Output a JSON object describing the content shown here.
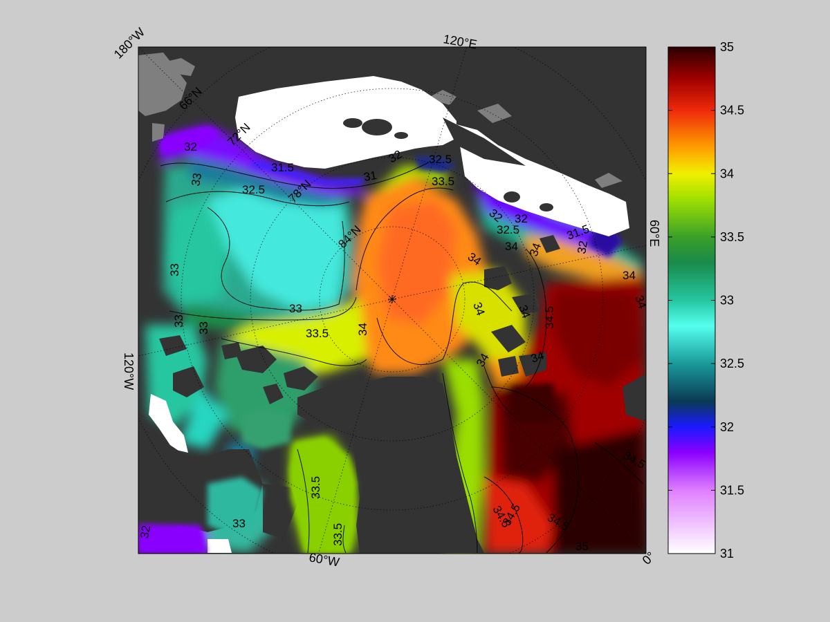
{
  "map": {
    "longitude_labels": [
      "180°W",
      "120°E",
      "60°E",
      "0°",
      "60°W",
      "120°W"
    ],
    "latitude_labels": [
      "66°N",
      "72°N",
      "78°N",
      "84°N"
    ],
    "contour_labels": [
      "31",
      "31.5",
      "32",
      "32.5",
      "33",
      "33.5",
      "34",
      "34.5",
      "35"
    ],
    "colors": {
      "land": "#333333",
      "ice": "#ffffff",
      "missing": "#7f7f7f",
      "figure_background": "#cccccc"
    }
  },
  "colorbar": {
    "min": 31,
    "max": 35,
    "tick_labels": [
      "35",
      "34.5",
      "34",
      "33.5",
      "33",
      "32.5",
      "32",
      "31.5",
      "31"
    ],
    "gradient": [
      {
        "value": 31.0,
        "color": "#ffffff"
      },
      {
        "value": 31.5,
        "color": "#df7fff"
      },
      {
        "value": 31.8,
        "color": "#8a00ff"
      },
      {
        "value": 32.0,
        "color": "#1a1aff"
      },
      {
        "value": 32.2,
        "color": "#0a3a55"
      },
      {
        "value": 32.5,
        "color": "#1a9a9a"
      },
      {
        "value": 32.8,
        "color": "#55ffee"
      },
      {
        "value": 33.0,
        "color": "#25c6a0"
      },
      {
        "value": 33.3,
        "color": "#1a8a4a"
      },
      {
        "value": 33.5,
        "color": "#3aa028"
      },
      {
        "value": 33.8,
        "color": "#a0e000"
      },
      {
        "value": 34.0,
        "color": "#f0f000"
      },
      {
        "value": 34.2,
        "color": "#ffa000"
      },
      {
        "value": 34.5,
        "color": "#ee2a0a"
      },
      {
        "value": 34.75,
        "color": "#a00000"
      },
      {
        "value": 35.0,
        "color": "#2a0000"
      }
    ]
  }
}
